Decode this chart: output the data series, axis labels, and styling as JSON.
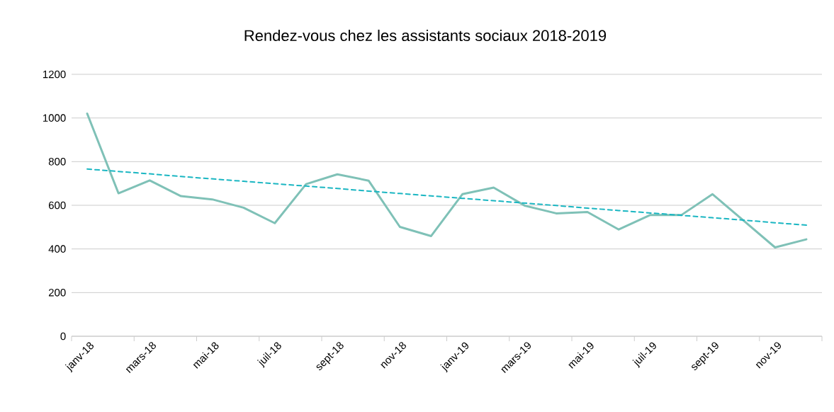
{
  "chart_data": {
    "type": "line",
    "title": "Rendez-vous  chez les assistants sociaux 2018-2019",
    "categories": [
      "janv-18",
      null,
      "mars-18",
      null,
      "mai-18",
      null,
      "juil-18",
      null,
      "sept-18",
      null,
      "nov-18",
      null,
      "janv-19",
      null,
      "mars-19",
      null,
      "mai-19",
      null,
      "juil-19",
      null,
      "sept-19",
      null,
      "nov-19",
      null
    ],
    "series": [
      {
        "color": "#7fc1b7",
        "values": [
          1020,
          655,
          714,
          642,
          627,
          589,
          518,
          697,
          742,
          713,
          501,
          459,
          651,
          681,
          598,
          563,
          569,
          489,
          555,
          555,
          651,
          529,
          407,
          444
        ]
      },
      {
        "type": "line",
        "color": "#1ab6c2",
        "line_style": "dashed",
        "values": [
          766,
          755,
          744,
          732,
          721,
          710,
          699,
          688,
          677,
          665,
          654,
          643,
          632,
          621,
          610,
          599,
          587,
          576,
          565,
          554,
          543,
          532,
          520,
          509
        ]
      }
    ],
    "ylim": [
      0,
      1200
    ],
    "yticks": [
      0,
      200,
      400,
      600,
      800,
      1000,
      1200
    ],
    "grid": "y"
  }
}
